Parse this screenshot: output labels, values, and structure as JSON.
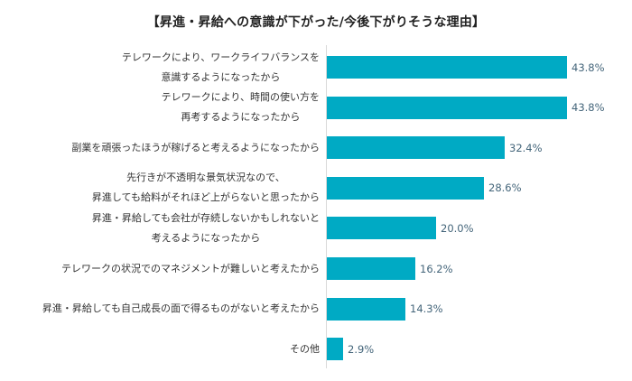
{
  "chart_data": {
    "type": "bar",
    "orientation": "horizontal",
    "title": "【昇進・昇給への意識が下がった/今後下がりそうな理由】",
    "xlabel": "",
    "ylabel": "",
    "unit": "%",
    "grid": false,
    "legend": null,
    "bar_color": "#00AAC4",
    "label_color": "#44657A",
    "categories": [
      "テレワークにより、ワークライフバランスを\n意識するようになったから",
      "テレワークにより、時間の使い方を\n再考するようになったから",
      "副業を頑張ったほうが稼げると考えるようになったから",
      "先行きが不透明な景気状況なので、\n昇進しても給料がそれほど上がらないと思ったから",
      "昇進・昇給しても会社が存続しないかもしれないと\n考えるようになったから",
      "テレワークの状況でのマネジメントが難しいと考えたから",
      "昇進・昇給しても自己成長の面で得るものがないと考えたから",
      "その他"
    ],
    "values": [
      43.8,
      43.8,
      32.4,
      28.6,
      20.0,
      16.2,
      14.3,
      2.9
    ],
    "value_labels": [
      "43.8%",
      "43.8%",
      "32.4%",
      "28.6%",
      "20.0%",
      "16.2%",
      "14.3%",
      "2.9%"
    ]
  },
  "rows": [
    {
      "line1": "テレワークにより、ワークライフバランスを",
      "line2": "意識するようになったから",
      "value": "43.8%"
    },
    {
      "line1": "テレワークにより、時間の使い方を",
      "line2": "再考するようになったから",
      "value": "43.8%"
    },
    {
      "line1": "副業を頑張ったほうが稼げると考えるようになったから",
      "line2": "",
      "value": "32.4%"
    },
    {
      "line1": "先行きが不透明な景気状況なので、",
      "line2": "昇進しても給料がそれほど上がらないと思ったから",
      "value": "28.6%"
    },
    {
      "line1": "昇進・昇給しても会社が存続しないかもしれないと",
      "line2": "考えるようになったから",
      "value": "20.0%"
    },
    {
      "line1": "テレワークの状況でのマネジメントが難しいと考えたから",
      "line2": "",
      "value": "16.2%"
    },
    {
      "line1": "昇進・昇給しても自己成長の面で得るものがないと考えたから",
      "line2": "",
      "value": "14.3%"
    },
    {
      "line1": "その他",
      "line2": "",
      "value": "2.9%"
    }
  ]
}
